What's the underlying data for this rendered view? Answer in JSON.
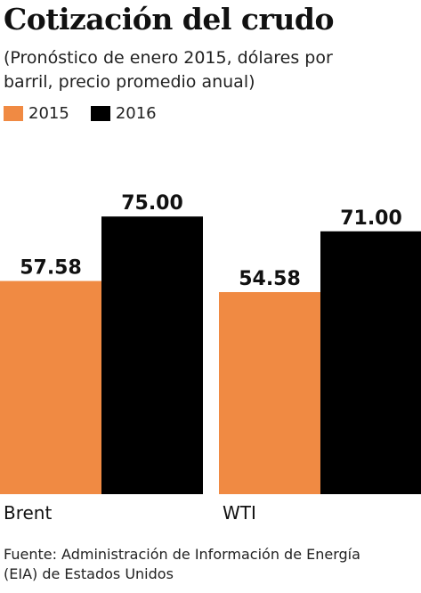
{
  "chart_data": {
    "type": "bar",
    "title": "Cotización del crudo",
    "subtitle": "(Pronóstico de enero 2015, dólares por barril, precio promedio anual)",
    "categories": [
      "Brent",
      "WTI"
    ],
    "series": [
      {
        "name": "2015",
        "values": [
          57.58,
          54.58
        ],
        "labels": [
          "57.58",
          "54.58"
        ],
        "color": "#f08a43"
      },
      {
        "name": "2016",
        "values": [
          75.0,
          71.0
        ],
        "labels": [
          "75.00",
          "71.00"
        ],
        "color": "#000000"
      }
    ],
    "ylim": [
      0,
      95
    ],
    "grid": false,
    "legend_position": "top-left",
    "source": "Fuente: Administración de Información de Energía (EIA) de Estados Unidos"
  }
}
